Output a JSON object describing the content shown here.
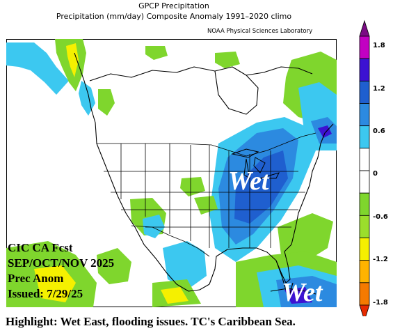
{
  "header": {
    "title": "GPCP Precipitation",
    "subtitle": "Precipitation (mm/day) Composite Anomaly 1991–2020 climo",
    "lab_credit": "NOAA Physical Sciences Laboratory"
  },
  "forecast": {
    "line1": "CIC CA Fcst",
    "line2": "SEP/OCT/NOV 2025",
    "line3": "Prec Anom",
    "line4": "Issued: 7/29/25"
  },
  "annotations": {
    "wet_east": "Wet",
    "wet_caribbean": "Wet"
  },
  "highlight": "Highlight: Wet East, flooding issues. TC's Caribbean Sea.",
  "colorbar": {
    "tick_labels": [
      "1.8",
      "1.2",
      "0.6",
      "0",
      "-0.6",
      "-1.2",
      "-1.8"
    ],
    "colors": [
      "#7a0b84",
      "#c200c2",
      "#3c12d2",
      "#1f5fcf",
      "#2c8ae0",
      "#3cc8f0",
      "#ffffff",
      "#ffffff",
      "#7fd62d",
      "#9bde2c",
      "#f5f000",
      "#ffb300",
      "#f57a00",
      "#e62a00"
    ]
  },
  "colors": {
    "wet_strong": "#1f5fcf",
    "wet": "#2c8ae0",
    "wet_light": "#3cc8f0",
    "dry_light": "#7fd62d",
    "dry": "#9bde2c",
    "dry_strong": "#f5f000"
  }
}
